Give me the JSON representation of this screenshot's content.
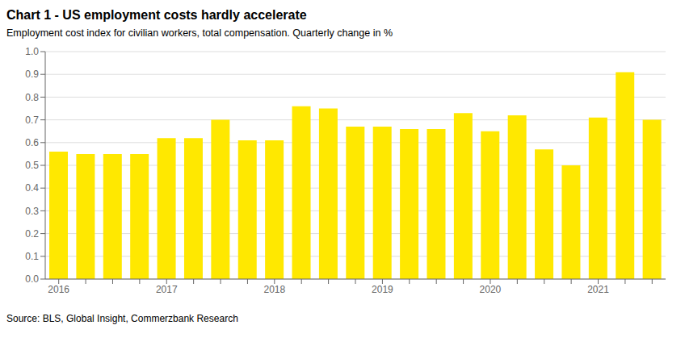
{
  "chart_data": {
    "type": "bar",
    "title": "Chart 1 - US employment costs hardly accelerate",
    "subtitle": "Employment cost index for civilian workers, total compensation. Quarterly change in %",
    "source": "Source: BLS, Global Insight, Commerzbank Research",
    "categories": [
      "2016",
      null,
      null,
      null,
      "2017",
      null,
      null,
      null,
      "2018",
      null,
      null,
      null,
      "2019",
      null,
      null,
      null,
      "2020",
      null,
      null,
      null,
      "2021",
      null,
      null
    ],
    "values": [
      0.56,
      0.55,
      0.55,
      0.55,
      0.62,
      0.62,
      0.7,
      0.61,
      0.61,
      0.76,
      0.75,
      0.67,
      0.67,
      0.66,
      0.66,
      0.73,
      0.65,
      0.72,
      0.57,
      0.5,
      0.71,
      0.91,
      0.7
    ],
    "color": "#FFE800",
    "ylim": [
      0.0,
      1.0
    ],
    "yticks": [
      {
        "value": 0.0,
        "label": "0.0"
      },
      0.1,
      0.2,
      0.3,
      0.4,
      0.5,
      0.6,
      0.7,
      0.8,
      0.9,
      {
        "value": 1.0,
        "label": "1.0"
      }
    ],
    "grid": true
  }
}
